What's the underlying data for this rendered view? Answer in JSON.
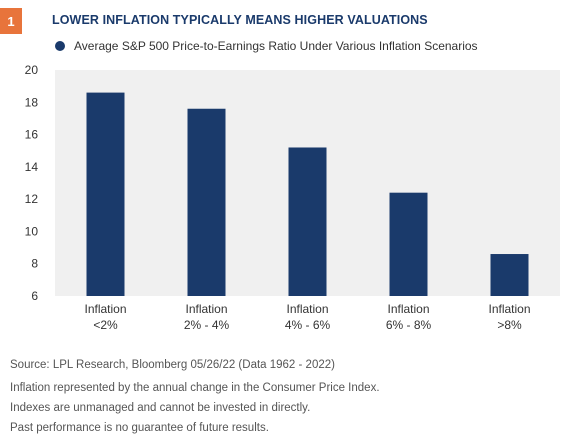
{
  "figure": {
    "number": "1",
    "title": "LOWER INFLATION TYPICALLY MEANS HIGHER VALUATIONS"
  },
  "colors": {
    "bar": "#1a3a6b",
    "plot_background": "#f0f0f0",
    "badge": "#e8743b",
    "title": "#1a3a6b"
  },
  "chart_data": {
    "type": "bar",
    "categories": [
      [
        "Inflation",
        "<2%"
      ],
      [
        "Inflation",
        "2% - 4%"
      ],
      [
        "Inflation",
        "4% - 6%"
      ],
      [
        "Inflation",
        "6% - 8%"
      ],
      [
        "Inflation",
        ">8%"
      ]
    ],
    "series": [
      {
        "name": "Average S&P 500 Price-to-Earnings Ratio Under Various Inflation Scenarios",
        "values": [
          18.6,
          17.6,
          15.2,
          12.4,
          8.6
        ]
      }
    ],
    "ylim": [
      6,
      20
    ],
    "yticks": [
      6,
      8,
      10,
      12,
      14,
      16,
      18,
      20
    ],
    "legend_position": "top-left",
    "grid": false
  },
  "notes": {
    "source": "Source: LPL Research, Bloomberg  05/26/22 (Data 1962 - 2022)",
    "lines": [
      "Inflation represented by the annual change in the Consumer Price Index.",
      "Indexes are unmanaged and cannot be invested in directly.",
      "Past performance is no guarantee of future results."
    ]
  }
}
